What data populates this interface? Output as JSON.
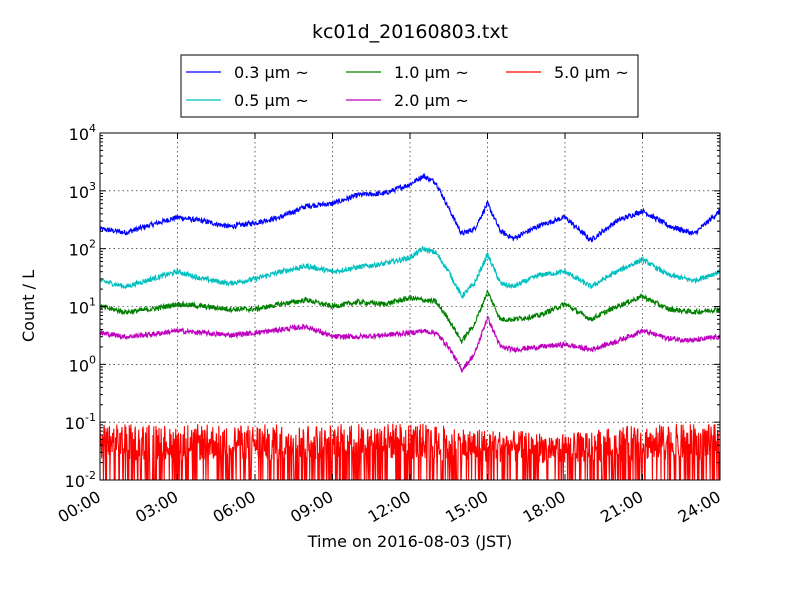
{
  "chart_data": {
    "type": "line",
    "title": "kc01d_20160803.txt",
    "xlabel": "Time on 2016-08-03 (JST)",
    "ylabel": "Count / L",
    "y_scale": "log",
    "xlim": [
      "2016-08-03 00:00",
      "2016-08-04 00:00"
    ],
    "ylim": [
      0.01,
      10000
    ],
    "x_ticks": [
      "00:00",
      "03:00",
      "06:00",
      "09:00",
      "12:00",
      "15:00",
      "18:00",
      "21:00",
      "24:00"
    ],
    "y_ticks": [
      {
        "base": "10",
        "exp": "-2"
      },
      {
        "base": "10",
        "exp": "-1"
      },
      {
        "base": "10",
        "exp": "0"
      },
      {
        "base": "10",
        "exp": "1"
      },
      {
        "base": "10",
        "exp": "2"
      },
      {
        "base": "10",
        "exp": "3"
      },
      {
        "base": "10",
        "exp": "4"
      }
    ],
    "grid": true,
    "legend_position": "top-center",
    "series": [
      {
        "name": "0.3 µm ~",
        "color": "#0000ff",
        "x": [
          "00:00",
          "01:00",
          "02:00",
          "03:00",
          "04:00",
          "05:00",
          "06:00",
          "07:00",
          "08:00",
          "09:00",
          "10:00",
          "11:00",
          "12:00",
          "12:30",
          "13:00",
          "13:30",
          "14:00",
          "14:30",
          "15:00",
          "15:30",
          "16:00",
          "17:00",
          "18:00",
          "19:00",
          "20:00",
          "21:00",
          "22:00",
          "23:00",
          "24:00"
        ],
        "values": [
          220,
          190,
          260,
          350,
          300,
          240,
          280,
          350,
          550,
          600,
          850,
          900,
          1300,
          1800,
          1400,
          500,
          180,
          220,
          600,
          200,
          150,
          250,
          350,
          140,
          300,
          450,
          250,
          180,
          450
        ]
      },
      {
        "name": "0.5 µm ~",
        "color": "#00bfbf",
        "x": [
          "00:00",
          "01:00",
          "02:00",
          "03:00",
          "04:00",
          "05:00",
          "06:00",
          "07:00",
          "08:00",
          "09:00",
          "10:00",
          "11:00",
          "12:00",
          "12:30",
          "13:00",
          "13:30",
          "14:00",
          "14:30",
          "15:00",
          "15:30",
          "16:00",
          "17:00",
          "18:00",
          "19:00",
          "20:00",
          "21:00",
          "22:00",
          "23:00",
          "24:00"
        ],
        "values": [
          28,
          22,
          30,
          40,
          30,
          25,
          30,
          40,
          50,
          40,
          48,
          55,
          70,
          100,
          85,
          40,
          15,
          25,
          80,
          25,
          22,
          35,
          40,
          22,
          40,
          65,
          35,
          28,
          40
        ]
      },
      {
        "name": "1.0 µm ~",
        "color": "#008000",
        "x": [
          "00:00",
          "01:00",
          "02:00",
          "03:00",
          "04:00",
          "05:00",
          "06:00",
          "07:00",
          "08:00",
          "09:00",
          "10:00",
          "11:00",
          "12:00",
          "12:30",
          "13:00",
          "13:30",
          "14:00",
          "14:30",
          "15:00",
          "15:30",
          "16:00",
          "17:00",
          "18:00",
          "19:00",
          "20:00",
          "21:00",
          "22:00",
          "23:00",
          "24:00"
        ],
        "values": [
          10,
          8,
          9,
          11,
          10,
          9,
          9,
          11,
          13,
          10,
          12,
          11,
          14,
          13,
          12,
          6,
          2.5,
          5,
          18,
          6,
          6,
          7,
          11,
          6,
          10,
          15,
          9,
          8,
          9
        ]
      },
      {
        "name": "2.0 µm ~",
        "color": "#bf00bf",
        "x": [
          "00:00",
          "01:00",
          "02:00",
          "03:00",
          "04:00",
          "05:00",
          "06:00",
          "07:00",
          "08:00",
          "09:00",
          "10:00",
          "11:00",
          "12:00",
          "12:30",
          "13:00",
          "13:30",
          "14:00",
          "14:30",
          "15:00",
          "15:30",
          "16:00",
          "17:00",
          "18:00",
          "19:00",
          "20:00",
          "21:00",
          "22:00",
          "23:00",
          "24:00"
        ],
        "values": [
          3.5,
          3.0,
          3.3,
          3.8,
          3.5,
          3.2,
          3.5,
          4.0,
          4.5,
          3.0,
          3.0,
          3.2,
          3.5,
          3.8,
          3.5,
          2.0,
          0.8,
          1.5,
          6.5,
          2.0,
          1.8,
          2.0,
          2.2,
          1.8,
          2.5,
          3.8,
          2.8,
          2.6,
          3.0
        ]
      },
      {
        "name": "5.0 µm ~",
        "color": "#ff0000",
        "x": [
          "00:00",
          "03:00",
          "06:00",
          "09:00",
          "12:00",
          "15:00",
          "18:00",
          "21:00",
          "24:00"
        ],
        "values": [
          0.05,
          0.05,
          0.05,
          0.05,
          0.06,
          0.03,
          0.02,
          0.05,
          0.05
        ],
        "note_values_range": [
          0.01,
          0.14
        ]
      }
    ]
  }
}
